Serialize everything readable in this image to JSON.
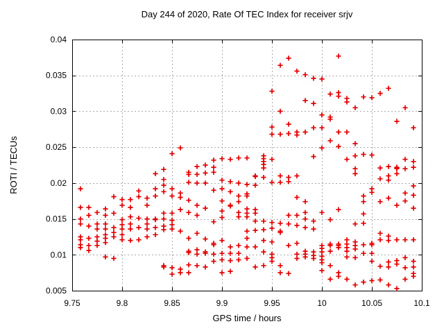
{
  "title": "Day 244 of 2020, Rate Of TEC Index for receiver srjv",
  "x_axis": {
    "label": "GPS time / hours",
    "min": 9.75,
    "max": 10.1,
    "tick_step": 0.05,
    "ticks": [
      9.75,
      9.8,
      9.85,
      9.9,
      9.95,
      10,
      10.05,
      10.1
    ],
    "tick_labels": [
      "9.75",
      "9.8",
      "9.85",
      "9.9",
      "9.95",
      "10",
      "10.05",
      "10.1"
    ]
  },
  "y_axis": {
    "label": "ROTI / TECUs",
    "min": 0.005,
    "max": 0.04,
    "tick_step": 0.005,
    "ticks": [
      0.005,
      0.01,
      0.015,
      0.02,
      0.025,
      0.03,
      0.035,
      0.04
    ],
    "tick_labels": [
      "0.005",
      "0.01",
      "0.015",
      "0.02",
      "0.025",
      "0.03",
      "0.035",
      "0.04"
    ]
  },
  "colors": {
    "marker": "#e60000",
    "grid": "#a8a8a8",
    "axis": "#000000",
    "background": "#ffffff"
  },
  "chart_data": {
    "type": "scatter",
    "title": "Day 244 of 2020, Rate Of TEC Index for receiver srjv",
    "xlabel": "GPS time / hours",
    "ylabel": "ROTI / TECUs",
    "xlim": [
      9.75,
      10.1
    ],
    "ylim": [
      0.005,
      0.04
    ],
    "grid": true,
    "legend": false,
    "marker": {
      "shape": "plus",
      "color": "#e60000"
    },
    "series_name": "ROTI",
    "columns": [
      {
        "t": 9.7583,
        "v": [
          0.0192,
          0.0166,
          0.015,
          0.0143,
          0.0125,
          0.0121,
          0.0114,
          0.011
        ]
      },
      {
        "t": 9.7667,
        "v": [
          0.0166,
          0.0155,
          0.014,
          0.0123,
          0.0113,
          0.0106
        ]
      },
      {
        "t": 9.775,
        "v": [
          0.0159,
          0.0143,
          0.0136,
          0.0125,
          0.0119,
          0.0113
        ]
      },
      {
        "t": 9.7833,
        "v": [
          0.0164,
          0.0155,
          0.0143,
          0.0136,
          0.0128,
          0.0123,
          0.0117,
          0.0097
        ]
      },
      {
        "t": 9.7917,
        "v": [
          0.0181,
          0.0158,
          0.0138,
          0.0131,
          0.0125,
          0.0095
        ]
      },
      {
        "t": 9.8,
        "v": [
          0.0177,
          0.0169,
          0.0149,
          0.0142,
          0.0136,
          0.0128,
          0.0121
        ]
      },
      {
        "t": 9.8083,
        "v": [
          0.0177,
          0.0166,
          0.0153,
          0.0143,
          0.0136,
          0.012
        ]
      },
      {
        "t": 9.8167,
        "v": [
          0.0189,
          0.0181,
          0.0151,
          0.0138,
          0.0121
        ]
      },
      {
        "t": 9.825,
        "v": [
          0.0179,
          0.0169,
          0.015,
          0.0143,
          0.0136,
          0.0125
        ]
      },
      {
        "t": 9.8333,
        "v": [
          0.0213,
          0.0192,
          0.0182,
          0.015,
          0.0149,
          0.0138,
          0.0128
        ]
      },
      {
        "t": 9.8417,
        "v": [
          0.0219,
          0.0205,
          0.0197,
          0.0188,
          0.0158,
          0.015,
          0.014,
          0.0135,
          0.0085,
          0.0083
        ]
      },
      {
        "t": 9.85,
        "v": [
          0.0241,
          0.0192,
          0.0182,
          0.0158,
          0.0148,
          0.0142,
          0.0136,
          0.0082,
          0.0073
        ]
      },
      {
        "t": 9.8583,
        "v": [
          0.0249,
          0.0186,
          0.018,
          0.0163,
          0.0133,
          0.008,
          0.0075
        ]
      },
      {
        "t": 9.8667,
        "v": [
          0.0215,
          0.0212,
          0.0201,
          0.0176,
          0.0159,
          0.0123,
          0.0105,
          0.0103,
          0.0086,
          0.0075
        ]
      },
      {
        "t": 9.875,
        "v": [
          0.0223,
          0.0212,
          0.02,
          0.0169,
          0.0155,
          0.013,
          0.0107,
          0.0101,
          0.0085
        ]
      },
      {
        "t": 9.8833,
        "v": [
          0.0225,
          0.0214,
          0.02,
          0.0165,
          0.0122,
          0.0104,
          0.0102,
          0.0083
        ]
      },
      {
        "t": 9.8917,
        "v": [
          0.0232,
          0.0222,
          0.0215,
          0.019,
          0.0146,
          0.0116,
          0.0114,
          0.0101,
          0.0091
        ]
      },
      {
        "t": 9.9,
        "v": [
          0.0234,
          0.0204,
          0.0192,
          0.0175,
          0.0161,
          0.0152,
          0.012,
          0.0102,
          0.0093,
          0.0075
        ]
      },
      {
        "t": 9.9083,
        "v": [
          0.0233,
          0.0202,
          0.0188,
          0.0169,
          0.0168,
          0.0111,
          0.0102,
          0.0092,
          0.0077
        ]
      },
      {
        "t": 9.9167,
        "v": [
          0.0235,
          0.02,
          0.0182,
          0.0174,
          0.0159,
          0.0153,
          0.0113,
          0.0102,
          0.0093
        ]
      },
      {
        "t": 9.925,
        "v": [
          0.0235,
          0.0198,
          0.0185,
          0.0182,
          0.0164,
          0.0158,
          0.0153,
          0.0133,
          0.0123,
          0.0111,
          0.0095
        ]
      },
      {
        "t": 9.9333,
        "v": [
          0.021,
          0.0209,
          0.0197,
          0.0163,
          0.0158,
          0.0147,
          0.0134,
          0.0111,
          0.0083
        ]
      },
      {
        "t": 9.9417,
        "v": [
          0.0238,
          0.0234,
          0.023,
          0.0226,
          0.0221,
          0.0208,
          0.0147,
          0.0135,
          0.012,
          0.0104,
          0.0085
        ]
      },
      {
        "t": 9.95,
        "v": [
          0.0328,
          0.0278,
          0.0268,
          0.0233,
          0.0201,
          0.0145,
          0.0137,
          0.0118,
          0.0101,
          0.0096,
          0.0091
        ]
      },
      {
        "t": 9.9583,
        "v": [
          0.0364,
          0.03,
          0.0268,
          0.021,
          0.0201,
          0.0144,
          0.0133,
          0.0131,
          0.0085,
          0.0075
        ]
      },
      {
        "t": 9.9667,
        "v": [
          0.0374,
          0.0282,
          0.0269,
          0.0208,
          0.0202,
          0.0155,
          0.0143,
          0.0113,
          0.0074
        ]
      },
      {
        "t": 9.975,
        "v": [
          0.0356,
          0.0271,
          0.0267,
          0.021,
          0.018,
          0.0155,
          0.0141,
          0.0116,
          0.0101,
          0.0095
        ]
      },
      {
        "t": 9.9833,
        "v": [
          0.0351,
          0.0315,
          0.0271,
          0.0174,
          0.0159,
          0.015,
          0.0138,
          0.0105,
          0.0101,
          0.0097
        ]
      },
      {
        "t": 9.9917,
        "v": [
          0.0346,
          0.0311,
          0.0277,
          0.0237,
          0.0147,
          0.0136,
          0.0104,
          0.0099,
          0.0095
        ]
      },
      {
        "t": 10.0,
        "v": [
          0.0345,
          0.0295,
          0.0277,
          0.0249,
          0.0159,
          0.0113,
          0.0109,
          0.0104,
          0.0098,
          0.0093,
          0.0089,
          0.0078
        ]
      },
      {
        "t": 10.0083,
        "v": [
          0.0324,
          0.0292,
          0.0289,
          0.0259,
          0.0149,
          0.0115,
          0.0113,
          0.0105,
          0.0085,
          0.0066
        ]
      },
      {
        "t": 10.0167,
        "v": [
          0.0377,
          0.0326,
          0.0321,
          0.0271,
          0.0251,
          0.0163,
          0.0115,
          0.0113,
          0.011,
          0.0075,
          0.007
        ]
      },
      {
        "t": 10.025,
        "v": [
          0.0318,
          0.0313,
          0.0271,
          0.0233,
          0.0121,
          0.0115,
          0.011,
          0.0105,
          0.0097,
          0.0066
        ]
      },
      {
        "t": 10.0333,
        "v": [
          0.0305,
          0.0255,
          0.0238,
          0.022,
          0.0213,
          0.0143,
          0.0118,
          0.0113,
          0.0108,
          0.0096,
          0.0058
        ]
      },
      {
        "t": 10.0417,
        "v": [
          0.032,
          0.024,
          0.0182,
          0.0174,
          0.0157,
          0.0144,
          0.0114,
          0.0102,
          0.0062
        ]
      },
      {
        "t": 10.05,
        "v": [
          0.0319,
          0.0239,
          0.0192,
          0.0187,
          0.0116,
          0.0114,
          0.0102,
          0.0091,
          0.0064
        ]
      },
      {
        "t": 10.0583,
        "v": [
          0.0325,
          0.0221,
          0.0206,
          0.0174,
          0.013,
          0.0121,
          0.0084,
          0.0065
        ]
      },
      {
        "t": 10.0667,
        "v": [
          0.0332,
          0.0223,
          0.021,
          0.0204,
          0.0179,
          0.0126,
          0.012,
          0.009,
          0.0083,
          0.0058
        ]
      },
      {
        "t": 10.075,
        "v": [
          0.0286,
          0.0222,
          0.0221,
          0.022,
          0.0213,
          0.0169,
          0.0121,
          0.0092,
          0.0087,
          0.0053
        ]
      },
      {
        "t": 10.0833,
        "v": [
          0.0305,
          0.0233,
          0.022,
          0.0186,
          0.0175,
          0.0121,
          0.0096,
          0.0082,
          0.0066
        ]
      },
      {
        "t": 10.0917,
        "v": [
          0.0277,
          0.023,
          0.0222,
          0.0196,
          0.0183,
          0.0165,
          0.0121,
          0.0091,
          0.0083,
          0.0074,
          0.007
        ]
      }
    ]
  }
}
